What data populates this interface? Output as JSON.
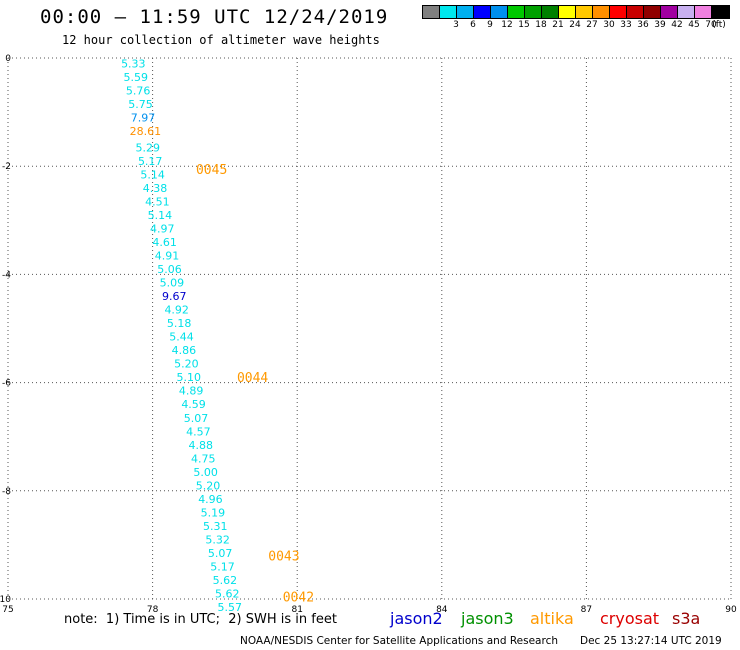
{
  "header": {
    "title": "00:00 – 11:59 UTC 12/24/2019",
    "subtitle": "12 hour collection of altimeter wave heights"
  },
  "legend": {
    "unit": "(ft)",
    "items": [
      {
        "label": "",
        "color": "#808080"
      },
      {
        "label": "3",
        "color": "#00e8ee"
      },
      {
        "label": "6",
        "color": "#00b0f0"
      },
      {
        "label": "9",
        "color": "#0000ff"
      },
      {
        "label": "12",
        "color": "#0090ee"
      },
      {
        "label": "15",
        "color": "#00c800"
      },
      {
        "label": "18",
        "color": "#00a000"
      },
      {
        "label": "21",
        "color": "#008000"
      },
      {
        "label": "24",
        "color": "#ffff00"
      },
      {
        "label": "27",
        "color": "#ffc800"
      },
      {
        "label": "30",
        "color": "#ff9000"
      },
      {
        "label": "33",
        "color": "#ff0000"
      },
      {
        "label": "36",
        "color": "#c80000"
      },
      {
        "label": "39",
        "color": "#900000"
      },
      {
        "label": "42",
        "color": "#a000a0"
      },
      {
        "label": "45",
        "color": "#c8b0f0"
      },
      {
        "label": "70",
        "color": "#f080e0"
      },
      {
        "label": "",
        "color": "#000000"
      }
    ]
  },
  "note": "note:  1) Time is in UTC;  2) SWH is in feet",
  "satellites": [
    {
      "name": "jason2",
      "color": "#0000cc"
    },
    {
      "name": "jason3",
      "color": "#009000"
    },
    {
      "name": "altika",
      "color": "#ff9900"
    },
    {
      "name": "cryosat",
      "color": "#dd0000"
    },
    {
      "name": "s3a",
      "color": "#990000"
    }
  ],
  "footer": {
    "credit": "NOAA/NESDIS Center for Satellite Applications and Research",
    "timestamp": "Dec 25 13:27:14 UTC 2019"
  },
  "chart_data": {
    "type": "scatter",
    "xlim": [
      75,
      90
    ],
    "ylim": [
      -10,
      0
    ],
    "x_ticks": [
      75,
      78,
      81,
      84,
      87,
      90
    ],
    "y_ticks": [
      0,
      -2,
      -4,
      -6,
      -8,
      -10
    ],
    "grid": true,
    "points": [
      {
        "x": 77.6,
        "y": -0.1,
        "v": "5.33",
        "c": "#00e0e8"
      },
      {
        "x": 77.65,
        "y": -0.35,
        "v": "5.59",
        "c": "#00e0e8"
      },
      {
        "x": 77.7,
        "y": -0.6,
        "v": "5.76",
        "c": "#00e0e8"
      },
      {
        "x": 77.75,
        "y": -0.85,
        "v": "5.75",
        "c": "#00e0e8"
      },
      {
        "x": 77.8,
        "y": -1.1,
        "v": "7.97",
        "c": "#0090ee"
      },
      {
        "x": 77.85,
        "y": -1.35,
        "v": "28.61",
        "c": "#ff9000"
      },
      {
        "x": 77.9,
        "y": -1.65,
        "v": "5.29",
        "c": "#00e0e8"
      },
      {
        "x": 77.95,
        "y": -1.9,
        "v": "5.17",
        "c": "#00e0e8"
      },
      {
        "x": 78.0,
        "y": -2.15,
        "v": "5.14",
        "c": "#00e0e8"
      },
      {
        "x": 78.05,
        "y": -2.4,
        "v": "4.38",
        "c": "#00e0e8"
      },
      {
        "x": 78.1,
        "y": -2.65,
        "v": "4.51",
        "c": "#00e0e8"
      },
      {
        "x": 78.15,
        "y": -2.9,
        "v": "5.14",
        "c": "#00e0e8"
      },
      {
        "x": 78.2,
        "y": -3.15,
        "v": "4.97",
        "c": "#00e0e8"
      },
      {
        "x": 78.25,
        "y": -3.4,
        "v": "4.61",
        "c": "#00e0e8"
      },
      {
        "x": 78.3,
        "y": -3.65,
        "v": "4.91",
        "c": "#00e0e8"
      },
      {
        "x": 78.35,
        "y": -3.9,
        "v": "5.06",
        "c": "#00e0e8"
      },
      {
        "x": 78.4,
        "y": -4.15,
        "v": "5.09",
        "c": "#00e0e8"
      },
      {
        "x": 78.45,
        "y": -4.4,
        "v": "9.67",
        "c": "#0000cc"
      },
      {
        "x": 78.5,
        "y": -4.65,
        "v": "4.92",
        "c": "#00e0e8"
      },
      {
        "x": 78.55,
        "y": -4.9,
        "v": "5.18",
        "c": "#00e0e8"
      },
      {
        "x": 78.6,
        "y": -5.15,
        "v": "5.44",
        "c": "#00e0e8"
      },
      {
        "x": 78.65,
        "y": -5.4,
        "v": "4.86",
        "c": "#00e0e8"
      },
      {
        "x": 78.7,
        "y": -5.65,
        "v": "5.20",
        "c": "#00e0e8"
      },
      {
        "x": 78.75,
        "y": -5.9,
        "v": "5.10",
        "c": "#00e0e8"
      },
      {
        "x": 78.8,
        "y": -6.15,
        "v": "4.89",
        "c": "#00e0e8"
      },
      {
        "x": 78.85,
        "y": -6.4,
        "v": "4.59",
        "c": "#00e0e8"
      },
      {
        "x": 78.9,
        "y": -6.65,
        "v": "5.07",
        "c": "#00e0e8"
      },
      {
        "x": 78.95,
        "y": -6.9,
        "v": "4.57",
        "c": "#00e0e8"
      },
      {
        "x": 79.0,
        "y": -7.15,
        "v": "4.88",
        "c": "#00e0e8"
      },
      {
        "x": 79.05,
        "y": -7.4,
        "v": "4.75",
        "c": "#00e0e8"
      },
      {
        "x": 79.1,
        "y": -7.65,
        "v": "5.00",
        "c": "#00e0e8"
      },
      {
        "x": 79.15,
        "y": -7.9,
        "v": "5.20",
        "c": "#00e0e8"
      },
      {
        "x": 79.2,
        "y": -8.15,
        "v": "4.96",
        "c": "#00e0e8"
      },
      {
        "x": 79.25,
        "y": -8.4,
        "v": "5.19",
        "c": "#00e0e8"
      },
      {
        "x": 79.3,
        "y": -8.65,
        "v": "5.31",
        "c": "#00e0e8"
      },
      {
        "x": 79.35,
        "y": -8.9,
        "v": "5.32",
        "c": "#00e0e8"
      },
      {
        "x": 79.4,
        "y": -9.15,
        "v": "5.07",
        "c": "#00e0e8"
      },
      {
        "x": 79.45,
        "y": -9.4,
        "v": "5.17",
        "c": "#00e0e8"
      },
      {
        "x": 79.5,
        "y": -9.65,
        "v": "5.62",
        "c": "#00e0e8"
      },
      {
        "x": 79.55,
        "y": -9.9,
        "v": "5.62",
        "c": "#00e0e8"
      },
      {
        "x": 79.6,
        "y": -10.15,
        "v": "5.57",
        "c": "#00e0e8"
      }
    ],
    "time_labels": [
      {
        "x": 78.9,
        "y": -2.05,
        "text": "0045",
        "c": "#ff9900"
      },
      {
        "x": 79.75,
        "y": -5.9,
        "text": "0044",
        "c": "#ff9900"
      },
      {
        "x": 80.4,
        "y": -9.2,
        "text": "0043",
        "c": "#ff9900"
      },
      {
        "x": 80.7,
        "y": -9.95,
        "text": "0042",
        "c": "#ff9900"
      }
    ]
  }
}
